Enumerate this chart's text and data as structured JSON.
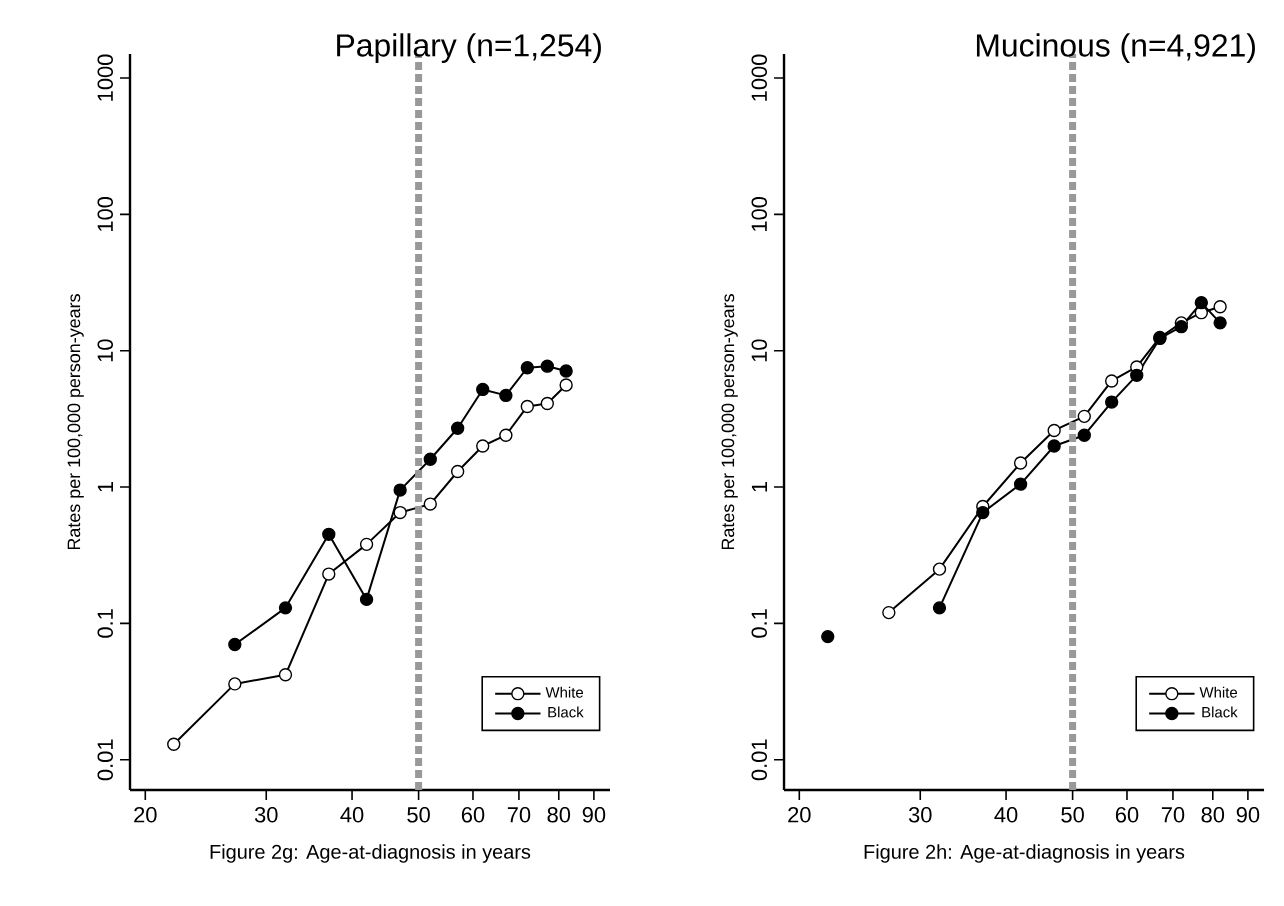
{
  "chart_data": [
    {
      "type": "line",
      "title": "Papillary (n=1,254)",
      "xlabel": "Figure 2g: Age-at-diagnosis in years",
      "ylabel": "Rates per 100,000 person-years",
      "log": "xy",
      "marker": "circle",
      "line_style": "solid",
      "legend": "bottom right",
      "grid": false,
      "x": [
        22,
        27,
        32,
        37,
        42,
        47,
        52,
        57,
        62,
        67,
        72,
        77,
        82
      ],
      "xlim": [
        19,
        95
      ],
      "xticks": [
        20,
        30,
        40,
        50,
        60,
        70,
        80,
        90
      ],
      "ylim": [
        0.006,
        1500
      ],
      "yticks": [
        0.01,
        0.1,
        1,
        10,
        100,
        1000
      ],
      "ref_lines": [
        {
          "axis": "x",
          "value": 50,
          "color": "#999999",
          "line_style": "dashed"
        }
      ],
      "series": [
        {
          "name": "White",
          "color": "#ffffff",
          "values": [
            0.013,
            0.036,
            0.042,
            0.23,
            0.38,
            0.65,
            0.75,
            1.3,
            2.0,
            2.4,
            3.9,
            4.1,
            5.6
          ]
        },
        {
          "name": "Black",
          "color": "#000000",
          "values": [
            null,
            0.07,
            0.13,
            0.45,
            0.15,
            0.95,
            1.6,
            2.7,
            5.2,
            4.7,
            7.5,
            7.7,
            7.1
          ]
        }
      ]
    },
    {
      "type": "line",
      "title": "Mucinous (n=4,921)",
      "xlabel": "Figure 2h: Age-at-diagnosis in years",
      "ylabel": "Rates per 100,000 person-years",
      "log": "xy",
      "marker": "circle",
      "line_style": "solid",
      "legend": "bottom right",
      "grid": false,
      "x": [
        22,
        27,
        32,
        37,
        42,
        47,
        52,
        57,
        62,
        67,
        72,
        77,
        82
      ],
      "xlim": [
        19,
        95
      ],
      "xticks": [
        20,
        30,
        40,
        50,
        60,
        70,
        80,
        90
      ],
      "ylim": [
        0.006,
        1500
      ],
      "yticks": [
        0.01,
        0.1,
        1,
        10,
        100,
        1000
      ],
      "ref_lines": [
        {
          "axis": "x",
          "value": 50,
          "color": "#999999",
          "line_style": "dashed"
        }
      ],
      "series": [
        {
          "name": "White",
          "color": "#ffffff",
          "values": [
            null,
            0.12,
            0.25,
            0.72,
            1.5,
            2.6,
            3.3,
            6.0,
            7.6,
            12.5,
            16,
            19,
            21
          ]
        },
        {
          "name": "Black",
          "color": "#000000",
          "values": [
            0.08,
            null,
            0.13,
            0.65,
            1.05,
            2.0,
            2.4,
            4.2,
            6.6,
            12.3,
            15,
            22.5,
            16
          ]
        }
      ]
    }
  ]
}
